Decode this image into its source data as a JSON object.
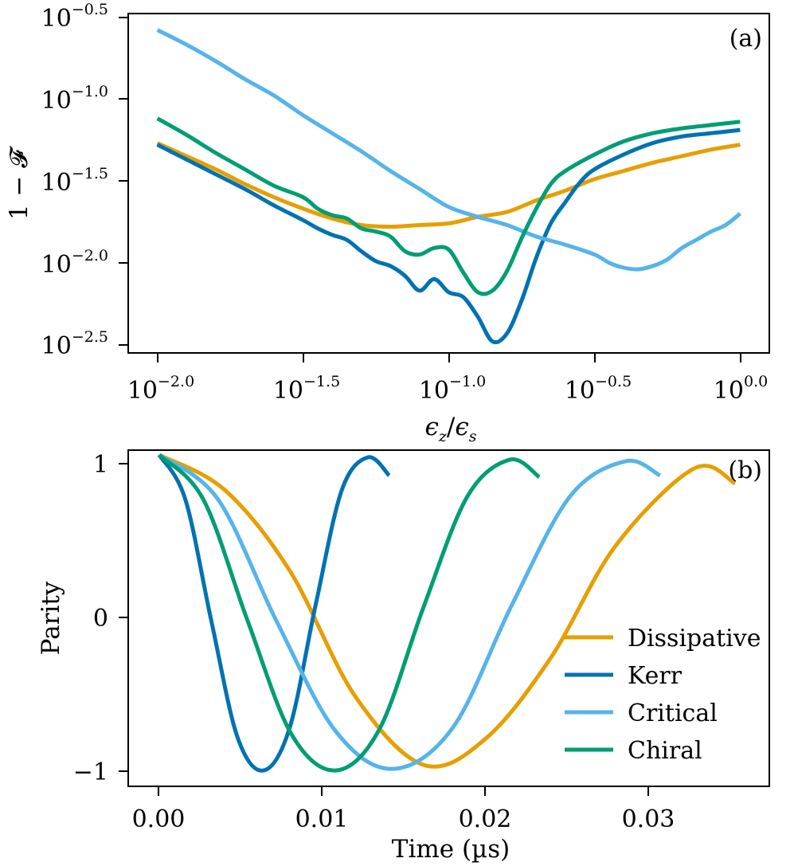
{
  "colors": {
    "dissipative": "#E69F00",
    "kerr": "#0072B2",
    "critical": "#56B4E9",
    "chiral": "#009E73"
  },
  "chart_data": [
    {
      "type": "line",
      "panel_label": "(a)",
      "xscale": "log10",
      "yscale": "log10",
      "xlabel": "ϵz/ϵs",
      "xlabel_parts": {
        "num": "ϵ",
        "num_sub": "z",
        "slash": "/",
        "den": "ϵ",
        "den_sub": "s"
      },
      "ylabel": "1 − 𝓕",
      "xlim_log10": [
        -2.1,
        0.1
      ],
      "ylim_log10": [
        -2.55,
        -0.48
      ],
      "xticks": [
        {
          "base": "10",
          "exp": "−2.0",
          "value": -2.0
        },
        {
          "base": "10",
          "exp": "−1.5",
          "value": -1.5
        },
        {
          "base": "10",
          "exp": "−1.0",
          "value": -1.0
        },
        {
          "base": "10",
          "exp": "−0.5",
          "value": -0.5
        },
        {
          "base": "10",
          "exp": "0.0",
          "value": 0.0
        }
      ],
      "yticks": [
        {
          "base": "10",
          "exp": "−0.5",
          "value": -0.5
        },
        {
          "base": "10",
          "exp": "−1.0",
          "value": -1.0
        },
        {
          "base": "10",
          "exp": "−1.5",
          "value": -1.5
        },
        {
          "base": "10",
          "exp": "−2.0",
          "value": -2.0
        },
        {
          "base": "10",
          "exp": "−2.5",
          "value": -2.5
        }
      ],
      "series": [
        {
          "name": "Dissipative",
          "color_key": "dissipative",
          "x": [
            -2.0,
            -1.9,
            -1.8,
            -1.7,
            -1.6,
            -1.5,
            -1.4,
            -1.3,
            -1.2,
            -1.1,
            -1.0,
            -0.9,
            -0.8,
            -0.7,
            -0.6,
            -0.5,
            -0.4,
            -0.3,
            -0.2,
            -0.1,
            0.0
          ],
          "y": [
            -1.27,
            -1.35,
            -1.43,
            -1.52,
            -1.6,
            -1.67,
            -1.73,
            -1.77,
            -1.78,
            -1.77,
            -1.76,
            -1.72,
            -1.69,
            -1.62,
            -1.56,
            -1.49,
            -1.44,
            -1.39,
            -1.35,
            -1.31,
            -1.28
          ]
        },
        {
          "name": "Kerr",
          "color_key": "kerr",
          "x": [
            -2.0,
            -1.9,
            -1.8,
            -1.7,
            -1.6,
            -1.5,
            -1.45,
            -1.4,
            -1.35,
            -1.3,
            -1.25,
            -1.2,
            -1.15,
            -1.1,
            -1.05,
            -1.0,
            -0.95,
            -0.9,
            -0.85,
            -0.8,
            -0.75,
            -0.7,
            -0.65,
            -0.6,
            -0.55,
            -0.5,
            -0.4,
            -0.3,
            -0.2,
            -0.1,
            0.0
          ],
          "y": [
            -1.28,
            -1.37,
            -1.46,
            -1.55,
            -1.65,
            -1.74,
            -1.79,
            -1.83,
            -1.86,
            -1.93,
            -1.99,
            -2.02,
            -2.08,
            -2.17,
            -2.1,
            -2.18,
            -2.21,
            -2.33,
            -2.48,
            -2.43,
            -2.23,
            -1.97,
            -1.76,
            -1.63,
            -1.51,
            -1.43,
            -1.34,
            -1.27,
            -1.23,
            -1.21,
            -1.19
          ]
        },
        {
          "name": "Critical",
          "color_key": "critical",
          "x": [
            -2.0,
            -1.9,
            -1.8,
            -1.7,
            -1.6,
            -1.5,
            -1.4,
            -1.3,
            -1.2,
            -1.1,
            -1.0,
            -0.9,
            -0.8,
            -0.7,
            -0.6,
            -0.5,
            -0.45,
            -0.4,
            -0.35,
            -0.3,
            -0.25,
            -0.2,
            -0.15,
            -0.1,
            -0.05,
            0.0
          ],
          "y": [
            -0.58,
            -0.67,
            -0.77,
            -0.88,
            -0.98,
            -1.1,
            -1.21,
            -1.32,
            -1.44,
            -1.55,
            -1.66,
            -1.72,
            -1.77,
            -1.84,
            -1.89,
            -1.95,
            -2.0,
            -2.03,
            -2.04,
            -2.02,
            -1.98,
            -1.91,
            -1.86,
            -1.81,
            -1.77,
            -1.7
          ]
        },
        {
          "name": "Chiral",
          "color_key": "chiral",
          "x": [
            -2.0,
            -1.9,
            -1.8,
            -1.7,
            -1.6,
            -1.5,
            -1.45,
            -1.4,
            -1.35,
            -1.3,
            -1.25,
            -1.2,
            -1.15,
            -1.1,
            -1.05,
            -1.0,
            -0.95,
            -0.9,
            -0.85,
            -0.8,
            -0.75,
            -0.7,
            -0.65,
            -0.6,
            -0.5,
            -0.4,
            -0.3,
            -0.2,
            -0.1,
            0.0
          ],
          "y": [
            -1.12,
            -1.22,
            -1.33,
            -1.43,
            -1.53,
            -1.6,
            -1.67,
            -1.71,
            -1.73,
            -1.79,
            -1.81,
            -1.84,
            -1.93,
            -1.95,
            -1.91,
            -1.92,
            -2.06,
            -2.18,
            -2.17,
            -2.05,
            -1.85,
            -1.67,
            -1.52,
            -1.44,
            -1.34,
            -1.26,
            -1.21,
            -1.18,
            -1.16,
            -1.14
          ]
        }
      ]
    },
    {
      "type": "line",
      "panel_label": "(b)",
      "xlabel": "Time (µs)",
      "ylabel": "Parity",
      "xlim": [
        -0.0019,
        0.0374
      ],
      "ylim": [
        -1.09,
        1.03
      ],
      "xticks": [
        {
          "label": "0.00",
          "value": 0.0
        },
        {
          "label": "0.01",
          "value": 0.01
        },
        {
          "label": "0.02",
          "value": 0.02
        },
        {
          "label": "0.03",
          "value": 0.03
        }
      ],
      "yticks": [
        {
          "label": "1",
          "value": 1
        },
        {
          "label": "0",
          "value": 0
        },
        {
          "label": "−1",
          "value": -1
        }
      ],
      "legend": {
        "location": "lower right",
        "entries": [
          "Dissipative",
          "Kerr",
          "Critical",
          "Chiral"
        ]
      },
      "series": [
        {
          "name": "Dissipative",
          "color_key": "dissipative",
          "x_end": 0.0353,
          "points": [
            [
              0.0,
              1.0
            ],
            [
              0.004,
              0.78
            ],
            [
              0.008,
              0.27
            ],
            [
              0.012,
              -0.52
            ],
            [
              0.0162,
              -0.955
            ],
            [
              0.02,
              -0.79
            ],
            [
              0.024,
              -0.28
            ],
            [
              0.028,
              0.43
            ],
            [
              0.0328,
              0.915
            ],
            [
              0.0353,
              0.82
            ]
          ]
        },
        {
          "name": "Kerr",
          "color_key": "kerr",
          "x_end": 0.0141,
          "points": [
            [
              0.0,
              1.0
            ],
            [
              0.0016,
              0.72
            ],
            [
              0.0032,
              -0.05
            ],
            [
              0.0048,
              -0.78
            ],
            [
              0.0064,
              -0.99
            ],
            [
              0.008,
              -0.72
            ],
            [
              0.0096,
              0.06
            ],
            [
              0.0112,
              0.78
            ],
            [
              0.0128,
              0.985
            ],
            [
              0.0141,
              0.87
            ]
          ]
        },
        {
          "name": "Critical",
          "color_key": "critical",
          "x_end": 0.0307,
          "points": [
            [
              0.0,
              1.0
            ],
            [
              0.0036,
              0.72
            ],
            [
              0.0072,
              -0.05
            ],
            [
              0.0108,
              -0.74
            ],
            [
              0.0143,
              -0.98
            ],
            [
              0.018,
              -0.72
            ],
            [
              0.0216,
              0.05
            ],
            [
              0.0252,
              0.74
            ],
            [
              0.0286,
              0.96
            ],
            [
              0.0307,
              0.87
            ]
          ]
        },
        {
          "name": "Chiral",
          "color_key": "chiral",
          "x_end": 0.0233,
          "points": [
            [
              0.0,
              1.0
            ],
            [
              0.0027,
              0.72
            ],
            [
              0.0054,
              -0.04
            ],
            [
              0.0081,
              -0.76
            ],
            [
              0.0108,
              -0.99
            ],
            [
              0.0135,
              -0.73
            ],
            [
              0.0162,
              0.04
            ],
            [
              0.0189,
              0.74
            ],
            [
              0.0215,
              0.97
            ],
            [
              0.0233,
              0.86
            ]
          ]
        }
      ]
    }
  ]
}
